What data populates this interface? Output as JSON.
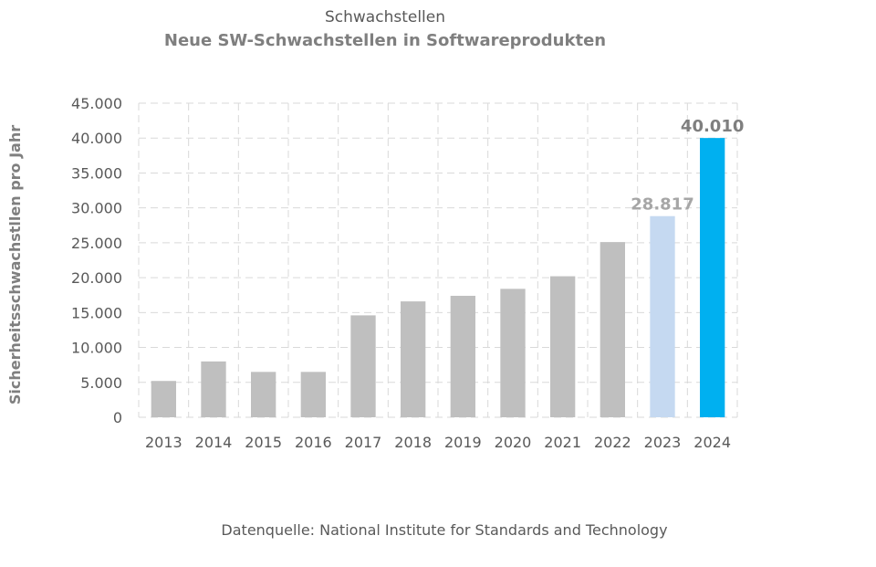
{
  "chart_data": {
    "type": "bar",
    "pretitle": "Schwachstellen",
    "title": "Neue SW-Schwachstellen in Softwareprodukten",
    "xlabel": "",
    "ylabel": "Sicherheitsschwachstllen pro Jahr",
    "ylim": [
      0,
      45000
    ],
    "ytick_values": [
      0,
      5000,
      10000,
      15000,
      20000,
      25000,
      30000,
      35000,
      40000,
      45000
    ],
    "ytick_labels": [
      "0",
      "5.000",
      "10.000",
      "15.000",
      "20.000",
      "25.000",
      "30.000",
      "35.000",
      "40.000",
      "45.000"
    ],
    "categories": [
      "2013",
      "2014",
      "2015",
      "2016",
      "2017",
      "2018",
      "2019",
      "2020",
      "2021",
      "2022",
      "2023",
      "2024"
    ],
    "values": [
      5200,
      8000,
      6500,
      6500,
      14600,
      16600,
      17400,
      18400,
      20200,
      25100,
      28817,
      40010
    ],
    "bar_colors": [
      "#bfbfbf",
      "#bfbfbf",
      "#bfbfbf",
      "#bfbfbf",
      "#bfbfbf",
      "#bfbfbf",
      "#bfbfbf",
      "#bfbfbf",
      "#bfbfbf",
      "#bfbfbf",
      "#c5d9f1",
      "#00b0f0"
    ],
    "data_labels": [
      {
        "index": 10,
        "text": "28.817",
        "color": "#a6a6a6"
      },
      {
        "index": 11,
        "text": "40.010",
        "color": "#7f7f7f"
      }
    ],
    "grid": true,
    "legend": "none"
  },
  "source_note": "Datenquelle: National Institute for Standards and Technology"
}
